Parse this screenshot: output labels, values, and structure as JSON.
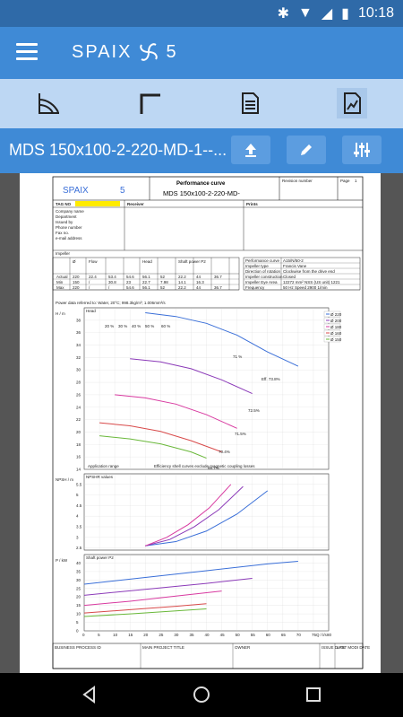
{
  "status": {
    "time": "10:18"
  },
  "app": {
    "logo_text": "SPAIX",
    "logo_version": "5"
  },
  "title": {
    "text": "MDS 150x100-2-220-MD-1--..."
  },
  "doc": {
    "logo_text": "SPAIX",
    "logo_version": "5",
    "header_title": "Performance curve",
    "header_model": "MDS 150x100-2-220-MD-",
    "revision_label": "Revision number",
    "page_label": "Page",
    "page_value": "1",
    "tag_label": "TAG NO",
    "receiver_label": "Receiver",
    "prints_label": "Prints",
    "contact_lines": [
      "Company name",
      "Department",
      "Issued by",
      "Phone number",
      "Fax no.",
      "e-mail address"
    ],
    "impeller_label": "Impeller",
    "perf_rows": [
      {
        "k": "Performance curve",
        "v": "A15/N/50-2"
      },
      {
        "k": "Impeller type",
        "v": "Francis Vane"
      },
      {
        "k": "Direction of rotation",
        "v": "Clockwise from the drive end"
      },
      {
        "k": "Impeller construction",
        "v": "Closed"
      },
      {
        "k": "Impeller Eye Area",
        "v": "12272 mm²   NSS (US unit)   1221"
      },
      {
        "k": "Frequency",
        "v": "50   Hz   Speed   2900   1/min"
      }
    ],
    "table_head": [
      "",
      "Ø",
      "Flow",
      "",
      "",
      "Head",
      "",
      "Shaft power P2",
      ""
    ],
    "table_rows": [
      [
        "Actual",
        "220",
        "22.4",
        "53.4",
        "54.6",
        "56.1",
        "52",
        "22.2",
        "44",
        "36.7"
      ],
      [
        "Min",
        "150",
        "/",
        "30.8",
        "23",
        "22.7",
        "7.98",
        "14.1",
        "16.3",
        ""
      ],
      [
        "Max",
        "220",
        "/",
        "/",
        "54.6",
        "56.1",
        "52",
        "22.2",
        "44",
        "36.7"
      ]
    ],
    "power_note": "Power data referred to:    Water, 20°C; 998.3kg/m³; 1.006mm²/s",
    "head_label": "Head",
    "npsh_label": "NPSHR values",
    "power_label": "Shaft power P2",
    "h_axis": "H / m",
    "npsh_axis": "NPSH / m",
    "p_axis": "P / kW",
    "q_axis": "Q / l/s",
    "app_range_note": "Application range",
    "eff_note": "Efficiency shell curves exclude magnetic coupling losses",
    "eff_labels": [
      "20 %",
      "30 %",
      "40 %",
      "50 %",
      "60 %",
      "71 %",
      "Eff. 73.8%",
      "72.5%",
      "71.5%",
      "70.4%",
      "68.7%"
    ],
    "legend": [
      {
        "label": "Ø 220",
        "color": "#3a6fd8"
      },
      {
        "label": "Ø 200",
        "color": "#8b3ab8"
      },
      {
        "label": "Ø 180",
        "color": "#d83aa0"
      },
      {
        "label": "Ø 160",
        "color": "#d84a4a"
      },
      {
        "label": "Ø 150",
        "color": "#6ab83a"
      }
    ],
    "footer": [
      "BUSINESS PROCESS ID",
      "MAIN PROJECT TITLE",
      "OWNER",
      "ISSUE DATE",
      "LAST MODI DATE"
    ]
  },
  "chart_data": [
    {
      "type": "line",
      "title": "Head",
      "xlabel": "Q / l/s",
      "ylabel": "H / m",
      "xlim": [
        0,
        80
      ],
      "ylim": [
        14,
        40
      ],
      "series": [
        {
          "name": "Ø 220",
          "x": [
            20,
            30,
            40,
            50,
            60,
            70
          ],
          "y": [
            39.2,
            38.6,
            37.5,
            35.6,
            32.9,
            30.6
          ]
        },
        {
          "name": "Ø 200",
          "x": [
            15,
            25,
            35,
            45,
            55
          ],
          "y": [
            31.8,
            31.3,
            30.2,
            28.4,
            26.2
          ]
        },
        {
          "name": "Ø 180",
          "x": [
            10,
            20,
            30,
            40,
            50
          ],
          "y": [
            26.0,
            25.5,
            24.5,
            22.8,
            20.6
          ]
        },
        {
          "name": "Ø 160",
          "x": [
            5,
            15,
            25,
            35,
            45
          ],
          "y": [
            21.5,
            21.0,
            20.1,
            18.6,
            16.8
          ]
        },
        {
          "name": "Ø 150",
          "x": [
            5,
            15,
            25,
            35,
            40
          ],
          "y": [
            19.4,
            18.9,
            18.1,
            16.8,
            15.8
          ]
        }
      ]
    },
    {
      "type": "line",
      "title": "NPSHR values",
      "ylabel": "NPSH / m",
      "xlim": [
        0,
        80
      ],
      "ylim": [
        2.4,
        6.0
      ],
      "series": [
        {
          "name": "Ø 220",
          "x": [
            20,
            30,
            40,
            50,
            60
          ],
          "y": [
            2.6,
            2.8,
            3.3,
            4.1,
            5.2
          ]
        },
        {
          "name": "Ø 200",
          "x": [
            20,
            28,
            36,
            44,
            52
          ],
          "y": [
            2.6,
            2.9,
            3.5,
            4.3,
            5.4
          ]
        },
        {
          "name": "Ø 180",
          "x": [
            20,
            27,
            34,
            41,
            48
          ],
          "y": [
            2.6,
            3.0,
            3.6,
            4.4,
            5.5
          ]
        }
      ]
    },
    {
      "type": "line",
      "title": "Shaft power P2",
      "ylabel": "P / kW",
      "xlim": [
        0,
        80
      ],
      "ylim": [
        0,
        45
      ],
      "series": [
        {
          "name": "Ø 220",
          "x": [
            0,
            20,
            40,
            60,
            70
          ],
          "y": [
            27.5,
            31.5,
            35.5,
            39.5,
            41
          ]
        },
        {
          "name": "Ø 200",
          "x": [
            0,
            20,
            40,
            55
          ],
          "y": [
            21,
            24.5,
            28,
            31
          ]
        },
        {
          "name": "Ø 180",
          "x": [
            0,
            15,
            30,
            45
          ],
          "y": [
            15,
            17.5,
            20.5,
            23.5
          ]
        },
        {
          "name": "Ø 160",
          "x": [
            0,
            15,
            30,
            40
          ],
          "y": [
            10.5,
            12.5,
            14.5,
            16
          ]
        },
        {
          "name": "Ø 150",
          "x": [
            0,
            15,
            30,
            40
          ],
          "y": [
            8.5,
            10,
            11.8,
            13
          ]
        }
      ]
    }
  ]
}
